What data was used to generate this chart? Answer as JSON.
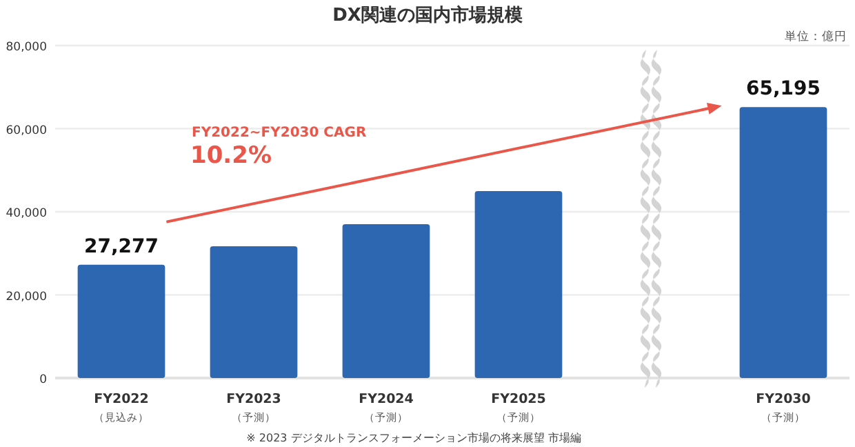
{
  "chart_data": {
    "type": "bar",
    "title": "DX関連の国内市場規模",
    "categories": [
      "FY2022\n（見込み）",
      "FY2023\n（予測）",
      "FY2024\n（予測）",
      "FY2025\n（予測）",
      null,
      "FY2030\n（予測）"
    ],
    "values": [
      27277,
      31700,
      37000,
      45000,
      null,
      65195
    ],
    "value_labels": [
      "27,277",
      null,
      null,
      null,
      null,
      "65,195"
    ],
    "color": "#2e67b1",
    "ylim": [
      0,
      80000
    ],
    "yticks": [
      {
        "value": 0,
        "label": "0"
      },
      {
        "value": 20000,
        "label": "20,000"
      },
      {
        "value": 40000,
        "label": "40,000"
      },
      {
        "value": 60000,
        "label": "60,000"
      },
      {
        "value": 80000,
        "label": "80,000"
      }
    ],
    "grid": "y",
    "annotations": [
      "単位：億円",
      "FY2022~FY2030 CAGR",
      "10.2%",
      "※ 2023 デジタルトランスフォーメーション市場の将来展望 市場編"
    ]
  }
}
